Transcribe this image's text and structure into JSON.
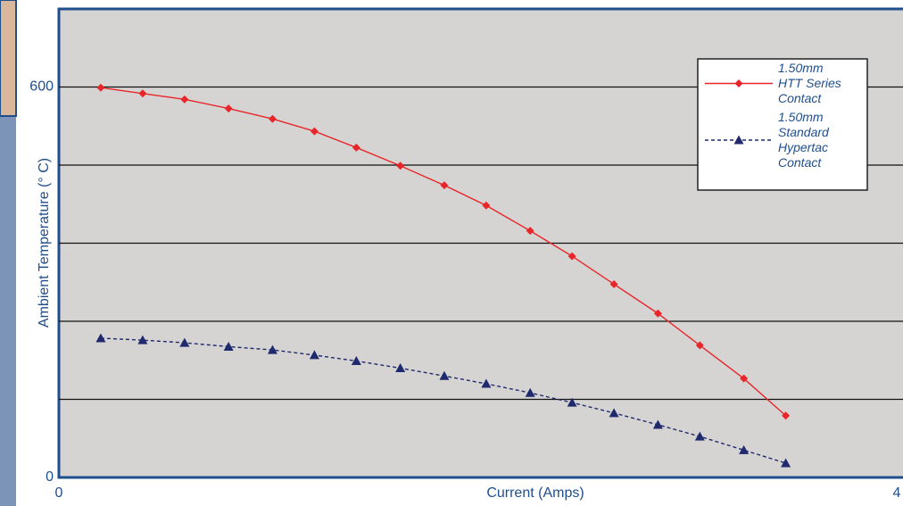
{
  "chart_data": {
    "type": "line",
    "x_label": "Current (Amps)",
    "y_label": "Ambient Temperature (° C)",
    "xlim": [
      0,
      4
    ],
    "xticks": [
      0,
      4
    ],
    "ylim": [
      0,
      720
    ],
    "yticks": [
      0,
      600
    ],
    "grid_lines": [
      120,
      240,
      360,
      480,
      600
    ],
    "legend": "upper right",
    "series": [
      {
        "name": "1.50mm\nHTT Series\nContact",
        "color": "#e8262a",
        "marker": "diamond",
        "dash": false,
        "x": [
          0.2,
          0.4,
          0.6,
          0.81,
          1.02,
          1.22,
          1.42,
          1.63,
          1.84,
          2.04,
          2.25,
          2.45,
          2.65,
          2.86,
          3.06,
          3.27,
          3.47
        ],
        "values": [
          599,
          590,
          581,
          567,
          551,
          532,
          507,
          479,
          449,
          418,
          379,
          340,
          297,
          252,
          203,
          152,
          95
        ]
      },
      {
        "name": "1.50mm\nStandard\nHypertac\nContact",
        "color": "#1f2a6e",
        "marker": "triangle",
        "dash": true,
        "x": [
          0.2,
          0.4,
          0.6,
          0.81,
          1.02,
          1.22,
          1.42,
          1.63,
          1.84,
          2.04,
          2.25,
          2.45,
          2.65,
          2.86,
          3.06,
          3.27,
          3.47
        ],
        "values": [
          214,
          211,
          207,
          201,
          196,
          188,
          179,
          168,
          156,
          144,
          130,
          115,
          99,
          81,
          63,
          42,
          22
        ]
      }
    ]
  }
}
